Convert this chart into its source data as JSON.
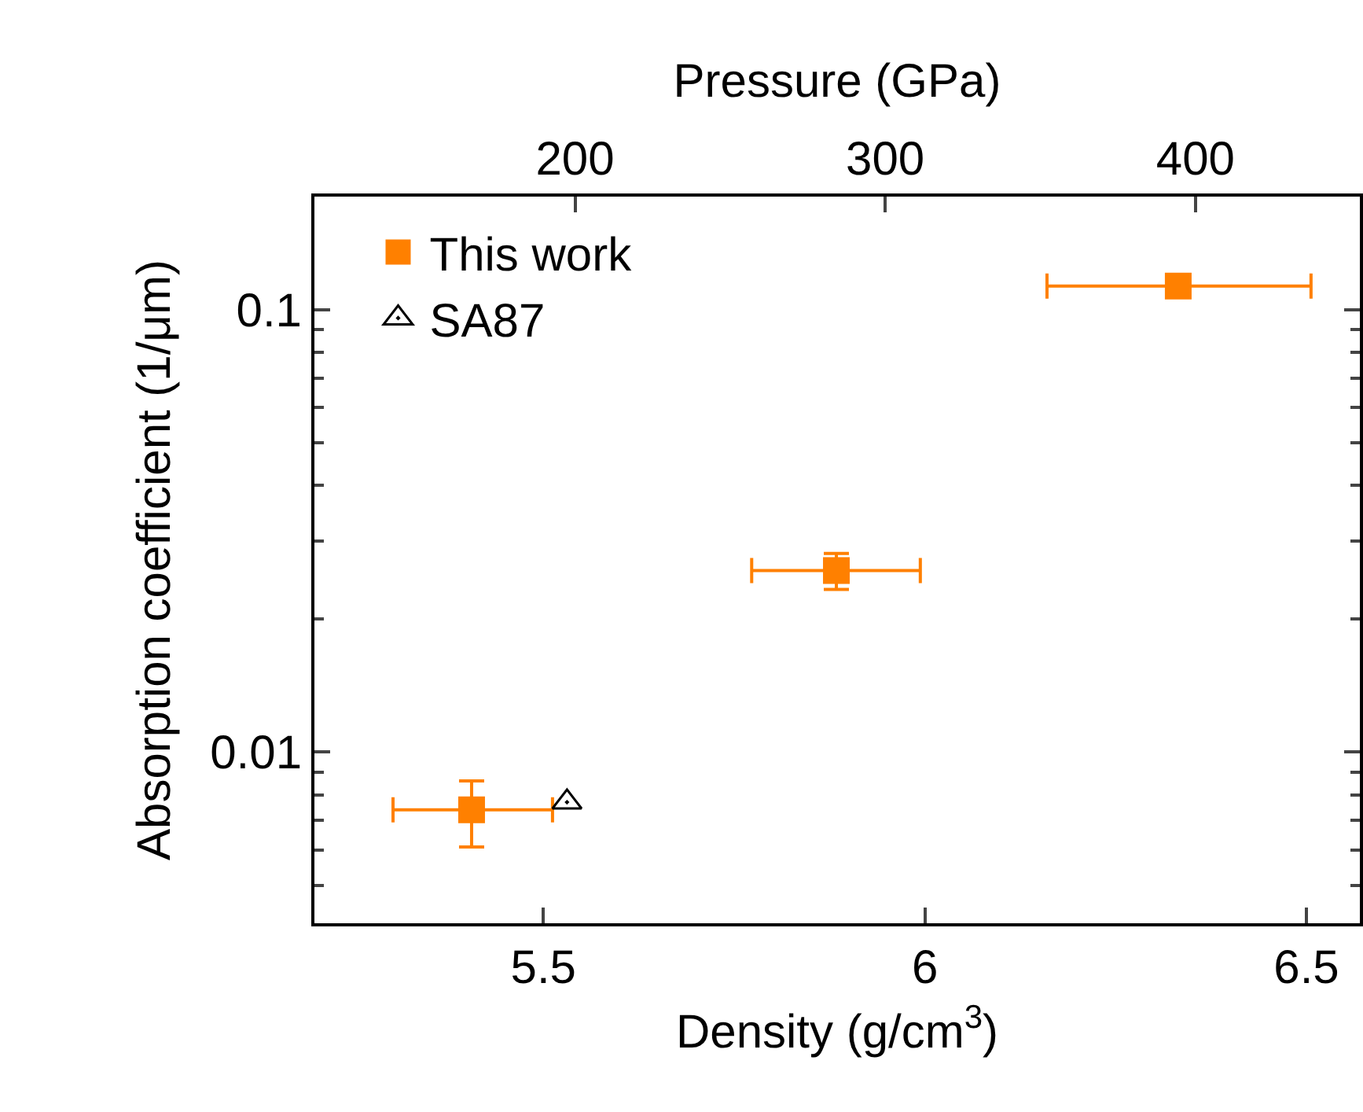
{
  "chart_data": {
    "type": "scatter",
    "xlabel": "Density (g/cm$^{3}$)",
    "ylabel": "Absorption coefficient (1/μm)",
    "x2label": "Pressure (GPa)",
    "xlim": [
      5.2,
      6.57
    ],
    "xticks": [
      5.5,
      6,
      6.5
    ],
    "x2lim": [
      116,
      453
    ],
    "x2ticks": [
      200,
      300,
      400
    ],
    "ylim": [
      0.0041,
      0.18
    ],
    "yticks": [
      0.01,
      0.1
    ],
    "log": "y",
    "grid": false,
    "legend": "top left",
    "series": [
      {
        "name": "This work",
        "color": "#ff8000",
        "marker": "square",
        "x": [
          5.406,
          5.884,
          6.332
        ],
        "values": [
          0.0074,
          0.0257,
          0.113
        ],
        "errors": [
          [
            0.0061,
            0.0086
          ],
          [
            0.0233,
            0.0281
          ],
          null
        ],
        "xerrors": [
          [
            5.303,
            5.512
          ],
          [
            5.773,
            5.994
          ],
          [
            6.16,
            6.506
          ]
        ]
      },
      {
        "name": "SA87",
        "color": "#000000",
        "marker": "triangle",
        "x": [
          5.531
        ],
        "values": [
          0.0077
        ]
      }
    ]
  }
}
